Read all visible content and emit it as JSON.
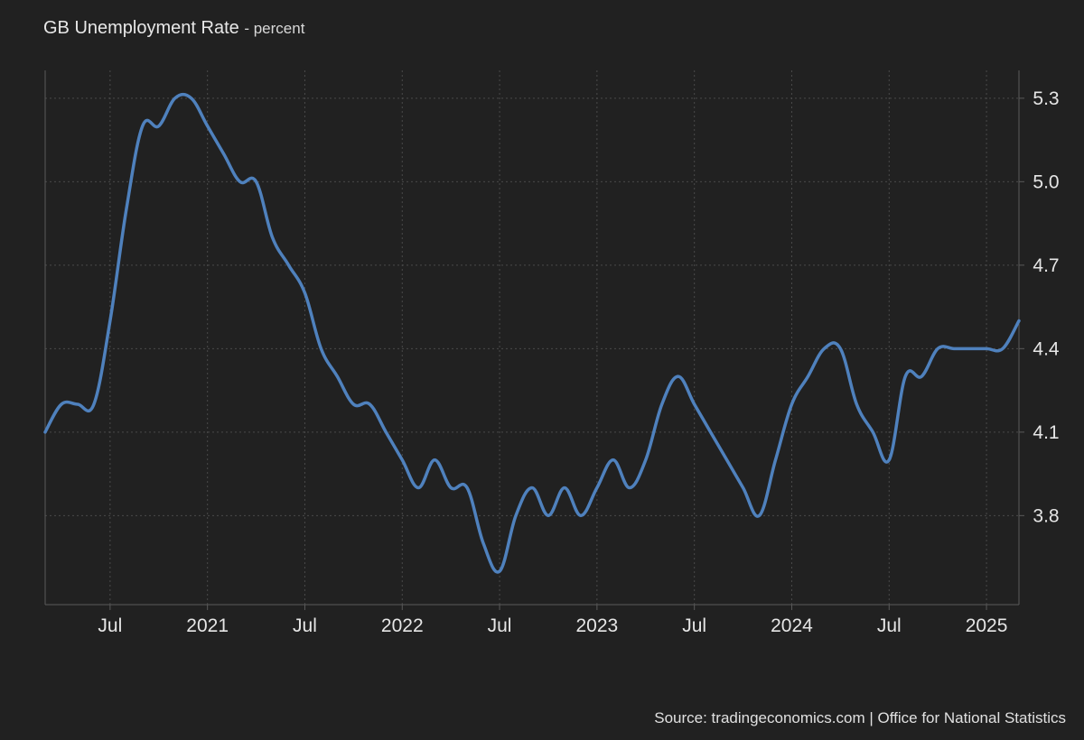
{
  "title": "GB Unemployment Rate",
  "unit_label": "- percent",
  "source": "Source: tradingeconomics.com | Office for National Statistics",
  "colors": {
    "background": "#212121",
    "line": "#4f81bd",
    "grid": "#4a4a4a",
    "axis": "#5a5a5a",
    "text": "#e6e6e6"
  },
  "chart_data": {
    "type": "line",
    "title": "GB Unemployment Rate",
    "ylabel": "",
    "xlabel": "",
    "grid": true,
    "y_axis_side": "right",
    "ylim": [
      3.48,
      5.4
    ],
    "xlim": [
      "2020-03",
      "2025-03"
    ],
    "y_ticks": [
      3.8,
      4.1,
      4.4,
      4.7,
      5.0,
      5.3
    ],
    "x_ticks": [
      {
        "date": "2020-07",
        "label": "Jul"
      },
      {
        "date": "2021-01",
        "label": "2021"
      },
      {
        "date": "2021-07",
        "label": "Jul"
      },
      {
        "date": "2022-01",
        "label": "2022"
      },
      {
        "date": "2022-07",
        "label": "Jul"
      },
      {
        "date": "2023-01",
        "label": "2023"
      },
      {
        "date": "2023-07",
        "label": "Jul"
      },
      {
        "date": "2024-01",
        "label": "2024"
      },
      {
        "date": "2024-07",
        "label": "Jul"
      },
      {
        "date": "2025-01",
        "label": "2025"
      }
    ],
    "series": [
      {
        "x": [
          "2020-03",
          "2020-04",
          "2020-05",
          "2020-06",
          "2020-07",
          "2020-08",
          "2020-09",
          "2020-10",
          "2020-11",
          "2020-12",
          "2021-01",
          "2021-02",
          "2021-03",
          "2021-04",
          "2021-05",
          "2021-06",
          "2021-07",
          "2021-08",
          "2021-09",
          "2021-10",
          "2021-11",
          "2021-12",
          "2022-01",
          "2022-02",
          "2022-03",
          "2022-04",
          "2022-05",
          "2022-06",
          "2022-07",
          "2022-08",
          "2022-09",
          "2022-10",
          "2022-11",
          "2022-12",
          "2023-01",
          "2023-02",
          "2023-03",
          "2023-04",
          "2023-05",
          "2023-06",
          "2023-07",
          "2023-08",
          "2023-09",
          "2023-10",
          "2023-11",
          "2023-12",
          "2024-01",
          "2024-02",
          "2024-03",
          "2024-04",
          "2024-05",
          "2024-06",
          "2024-07",
          "2024-08",
          "2024-09",
          "2024-10",
          "2024-11",
          "2024-12",
          "2025-01",
          "2025-02",
          "2025-03"
        ],
        "y": [
          4.1,
          4.2,
          4.2,
          4.2,
          4.5,
          4.9,
          5.2,
          5.2,
          5.3,
          5.3,
          5.2,
          5.1,
          5.0,
          5.0,
          4.8,
          4.7,
          4.6,
          4.4,
          4.3,
          4.2,
          4.2,
          4.1,
          4.0,
          3.9,
          4.0,
          3.9,
          3.9,
          3.7,
          3.6,
          3.8,
          3.9,
          3.8,
          3.9,
          3.8,
          3.9,
          4.0,
          3.9,
          4.0,
          4.2,
          4.3,
          4.2,
          4.1,
          4.0,
          3.9,
          3.8,
          4.0,
          4.2,
          4.3,
          4.4,
          4.4,
          4.2,
          4.1,
          4.0,
          4.3,
          4.3,
          4.4,
          4.4,
          4.4,
          4.4,
          4.4,
          4.5
        ]
      }
    ]
  }
}
